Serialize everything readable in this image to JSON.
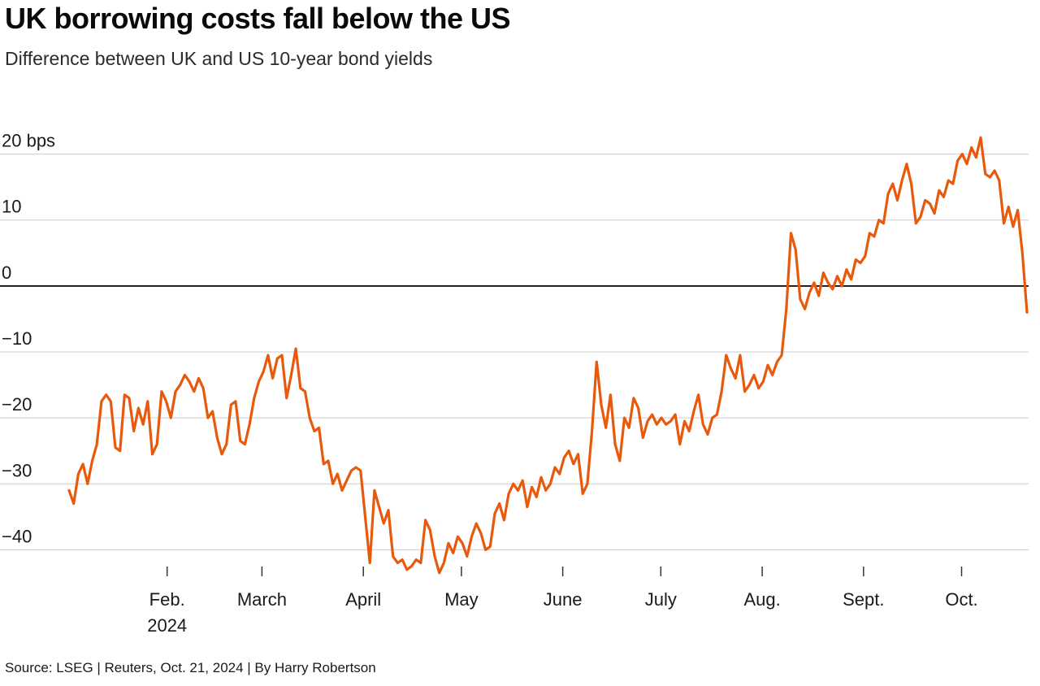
{
  "header": {
    "title": "UK borrowing costs fall below the US",
    "subtitle": "Difference between UK and US 10-year bond yields"
  },
  "footer": {
    "source": "Source: LSEG | Reuters, Oct. 21, 2024 | By Harry Robertson"
  },
  "chart_data": {
    "type": "line",
    "title": "UK borrowing costs fall below the US",
    "subtitle": "Difference between UK and US 10-year bond yields",
    "source": "Source: LSEG | Reuters, Oct. 21, 2024 | By Harry Robertson",
    "unit": "bps",
    "series_name": "UK minus US 10-year bond yield spread (bps)",
    "line_color": "#E8590C",
    "grid_color": "#cccccc",
    "zero_line_color": "#000000",
    "tick_color": "#333333",
    "grid": true,
    "legend": "none",
    "x_start_day_of_2024": 2,
    "x_end_day_of_2024": 295,
    "x_ticks": [
      {
        "label": "Feb.",
        "sublabel": "2024",
        "day": 32
      },
      {
        "label": "March",
        "day": 61
      },
      {
        "label": "April",
        "day": 92
      },
      {
        "label": "May",
        "day": 122
      },
      {
        "label": "June",
        "day": 153
      },
      {
        "label": "July",
        "day": 183
      },
      {
        "label": "Aug.",
        "day": 214
      },
      {
        "label": "Sept.",
        "day": 245
      },
      {
        "label": "Oct.",
        "day": 275
      }
    ],
    "y_ticks": [
      {
        "label": "20 bps",
        "value": 20
      },
      {
        "label": "10",
        "value": 10
      },
      {
        "label": "0",
        "value": 0,
        "zero": true
      },
      {
        "label": "−10",
        "value": -10
      },
      {
        "label": "−20",
        "value": -20
      },
      {
        "label": "−30",
        "value": -30
      },
      {
        "label": "−40",
        "value": -40
      }
    ],
    "ylim": [
      -46,
      25
    ],
    "values_bps": [
      -31,
      -33,
      -28.5,
      -27,
      -30,
      -26.5,
      -24,
      -17.5,
      -16.5,
      -17.5,
      -24.5,
      -25,
      -16.5,
      -17,
      -22,
      -18.5,
      -21,
      -17.5,
      -25.5,
      -24,
      -16,
      -17.5,
      -20,
      -16,
      -15,
      -13.5,
      -14.5,
      -16,
      -14,
      -15.5,
      -20,
      -19,
      -23,
      -25.5,
      -24,
      -18,
      -17.5,
      -23.5,
      -24,
      -21,
      -17,
      -14.5,
      -13,
      -10.5,
      -14,
      -11,
      -10.5,
      -17,
      -13.5,
      -9.5,
      -15.5,
      -16,
      -20,
      -22,
      -21.5,
      -27,
      -26.5,
      -30,
      -28.5,
      -31,
      -29.5,
      -28,
      -27.5,
      -28,
      -35,
      -42,
      -31,
      -33.5,
      -36,
      -34,
      -41,
      -42,
      -41.5,
      -43,
      -42.5,
      -41.5,
      -42,
      -35.5,
      -37,
      -41,
      -43.5,
      -42,
      -39,
      -40.5,
      -38,
      -39,
      -41,
      -38,
      -36,
      -37.5,
      -40,
      -39.5,
      -34.5,
      -33,
      -35.5,
      -31.5,
      -30,
      -31,
      -29.5,
      -33.5,
      -30.5,
      -32,
      -29,
      -31,
      -30,
      -27.5,
      -28.5,
      -26,
      -25,
      -27,
      -25.5,
      -31.5,
      -30,
      -22,
      -11.5,
      -18,
      -21.5,
      -16.5,
      -24,
      -26.5,
      -20,
      -21.5,
      -17,
      -18.5,
      -23,
      -20.5,
      -19.5,
      -21,
      -20,
      -21,
      -20.5,
      -19.5,
      -24,
      -20.5,
      -22,
      -19,
      -16.5,
      -21,
      -22.5,
      -20,
      -19.5,
      -16,
      -10.5,
      -12.5,
      -14,
      -10.5,
      -16,
      -15,
      -13.5,
      -15.5,
      -14.5,
      -12,
      -13.5,
      -11.5,
      -10.5,
      -3.5,
      8,
      5.5,
      -2,
      -3.5,
      -1,
      0.5,
      -1.5,
      2,
      0.5,
      -0.5,
      1.5,
      0,
      2.5,
      1,
      4,
      3.5,
      4.5,
      8,
      7.5,
      10,
      9.5,
      14,
      15.5,
      13,
      16,
      18.5,
      15.5,
      9.5,
      10.5,
      13,
      12.5,
      11,
      14.5,
      13.5,
      16,
      15.5,
      19,
      20,
      18.5,
      21,
      19.5,
      22.5,
      17,
      16.5,
      17.5,
      16,
      9.5,
      12,
      9,
      11.5,
      5,
      -4
    ]
  }
}
